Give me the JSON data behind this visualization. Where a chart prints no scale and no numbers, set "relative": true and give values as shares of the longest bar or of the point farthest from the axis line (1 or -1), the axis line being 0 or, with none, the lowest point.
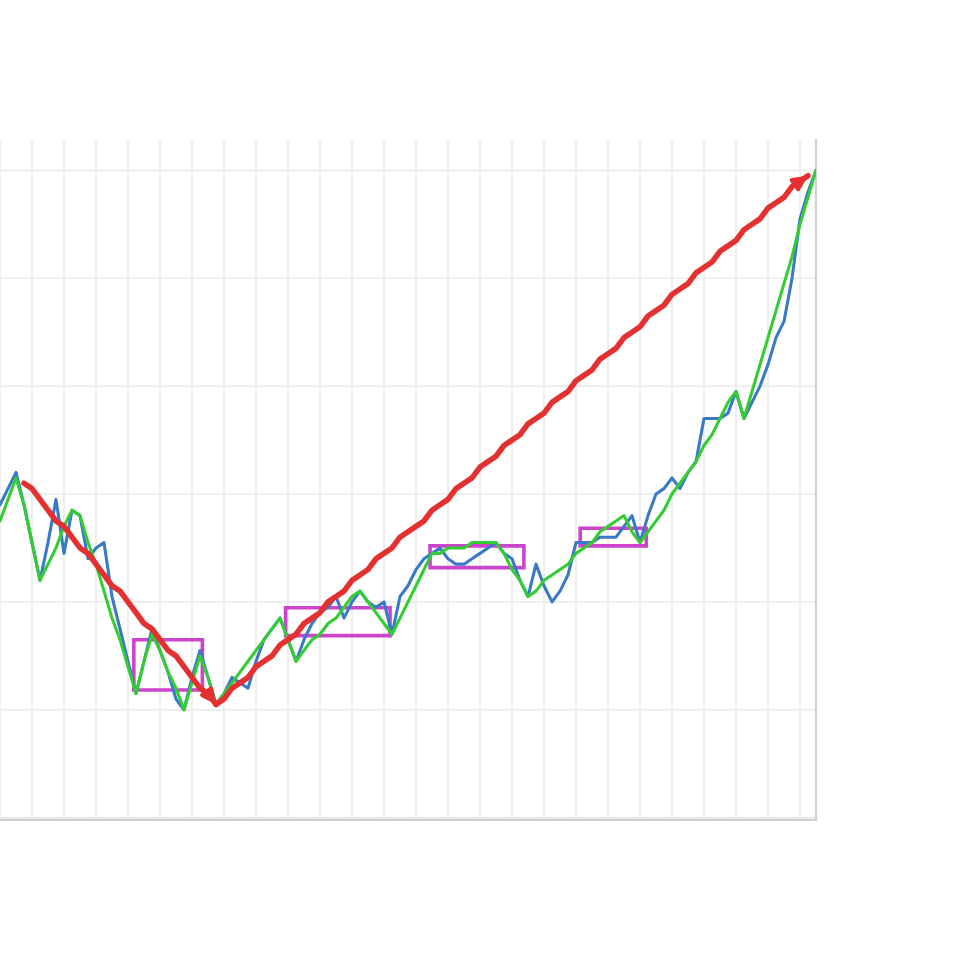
{
  "chart_data": {
    "type": "line",
    "relative": true,
    "grid": true,
    "categories": [
      null,
      null,
      null,
      null,
      null,
      null,
      null,
      null,
      null,
      null,
      null,
      null,
      null,
      null,
      null,
      null,
      null,
      null,
      null,
      null,
      null,
      null,
      null,
      null,
      null,
      null,
      null,
      null,
      null,
      null,
      null,
      null,
      null,
      null,
      null,
      null,
      null,
      null,
      null,
      null,
      null,
      null,
      null,
      null,
      null,
      null,
      null,
      null,
      null,
      null,
      null,
      null,
      null,
      null,
      null,
      null,
      null,
      null,
      null,
      null,
      null,
      null,
      null,
      null,
      null,
      null,
      null,
      null,
      null,
      null,
      null,
      null,
      null,
      null,
      null,
      null,
      null,
      null,
      null,
      null,
      null,
      null,
      null,
      null,
      null,
      null,
      null,
      null,
      null,
      null,
      null,
      null,
      null,
      null,
      null,
      null,
      null,
      null,
      null,
      null,
      null,
      null,
      null
    ],
    "series": [
      {
        "color": "#3a78c8",
        "values": [
          0.38,
          0.41,
          0.44,
          0.38,
          0.31,
          0.24,
          0.31,
          0.39,
          0.29,
          0.37,
          0.36,
          0.28,
          0.3,
          0.31,
          0.21,
          0.15,
          0.09,
          0.03,
          0.09,
          0.15,
          0.11,
          0.07,
          0.02,
          0,
          0.06,
          0.11,
          0.06,
          0.01,
          0.03,
          0.06,
          0.05,
          0.04,
          0.09,
          0.13,
          0.15,
          0.17,
          0.13,
          0.09,
          0.13,
          0.16,
          0.18,
          0.19,
          0.21,
          0.17,
          0.2,
          0.22,
          0.2,
          0.19,
          0.2,
          0.14,
          0.21,
          0.23,
          0.26,
          0.28,
          0.29,
          0.3,
          0.28,
          0.27,
          0.27,
          0.28,
          0.29,
          0.3,
          0.31,
          0.29,
          0.28,
          0.24,
          0.21,
          0.27,
          0.23,
          0.2,
          0.22,
          0.25,
          0.31,
          0.31,
          0.31,
          0.32,
          0.32,
          0.32,
          0.34,
          0.36,
          0.31,
          0.36,
          0.4,
          0.41,
          0.43,
          0.41,
          0.44,
          0.46,
          0.54,
          0.54,
          0.54,
          0.55,
          0.59,
          0.54,
          0.57,
          0.6,
          0.64,
          0.69,
          0.72,
          0.8,
          0.91,
          0.96,
          1
        ]
      },
      {
        "color": "#33cc33",
        "values": [
          0.35,
          0.39,
          0.43,
          0.38,
          0.31,
          0.24,
          0.27,
          0.3,
          0.34,
          0.37,
          0.36,
          0.31,
          0.27,
          0.22,
          0.17,
          0.13,
          0.08,
          0.03,
          0.09,
          0.14,
          0.11,
          0.07,
          0.04,
          0,
          0.05,
          0.1,
          0.06,
          0.01,
          0.03,
          0.05,
          0.07,
          0.09,
          0.11,
          0.13,
          0.15,
          0.17,
          0.13,
          0.09,
          0.11,
          0.13,
          0.14,
          0.16,
          0.17,
          0.19,
          0.21,
          0.22,
          0.2,
          0.18,
          0.16,
          0.14,
          0.17,
          0.2,
          0.23,
          0.26,
          0.29,
          0.29,
          0.3,
          0.3,
          0.3,
          0.31,
          0.31,
          0.31,
          0.31,
          0.29,
          0.26,
          0.24,
          0.21,
          0.22,
          0.24,
          0.25,
          0.26,
          0.27,
          0.29,
          0.3,
          0.31,
          0.33,
          0.34,
          0.35,
          0.36,
          0.33,
          0.31,
          0.33,
          0.35,
          0.37,
          0.4,
          0.42,
          0.44,
          0.46,
          0.49,
          0.51,
          0.54,
          0.57,
          0.59,
          0.54,
          0.59,
          0.64,
          0.69,
          0.74,
          0.79,
          0.84,
          0.9,
          0.95,
          1
        ]
      },
      {
        "color": "#e53030",
        "values": [
          null,
          null,
          null,
          0.42,
          0.41,
          0.39,
          0.37,
          0.35,
          0.34,
          0.32,
          0.3,
          0.29,
          0.27,
          0.25,
          0.23,
          0.22,
          0.2,
          0.18,
          0.16,
          0.15,
          0.13,
          0.11,
          0.1,
          0.08,
          0.06,
          0.04,
          0.03,
          0.01,
          null,
          null,
          null,
          null,
          null,
          null,
          null,
          null,
          null,
          null,
          null,
          null,
          null,
          null,
          null,
          null,
          null,
          null,
          null,
          null,
          null,
          null,
          null,
          null,
          null,
          null,
          null,
          null,
          null,
          null,
          null,
          null,
          null,
          null,
          null,
          null,
          null,
          null,
          null,
          null,
          null,
          null,
          null,
          null,
          null,
          null,
          null,
          null,
          null,
          null,
          null,
          null,
          null,
          null,
          null,
          null,
          null,
          null,
          null,
          null,
          null,
          null,
          null,
          null,
          null,
          null,
          null,
          null,
          null,
          null,
          null,
          null,
          null,
          null,
          null
        ]
      },
      {
        "color": "#e53030",
        "values": [
          null,
          null,
          null,
          null,
          null,
          null,
          null,
          null,
          null,
          null,
          null,
          null,
          null,
          null,
          null,
          null,
          null,
          null,
          null,
          null,
          null,
          null,
          null,
          null,
          null,
          null,
          null,
          0.01,
          0.02,
          0.04,
          0.05,
          0.06,
          0.08,
          0.09,
          0.1,
          0.12,
          0.13,
          0.14,
          0.16,
          0.17,
          0.18,
          0.2,
          0.21,
          0.22,
          0.24,
          0.25,
          0.26,
          0.28,
          0.29,
          0.3,
          0.32,
          0.33,
          0.34,
          0.35,
          0.37,
          0.38,
          0.39,
          0.41,
          0.42,
          0.43,
          0.45,
          0.46,
          0.47,
          0.49,
          0.5,
          0.51,
          0.53,
          0.54,
          0.55,
          0.57,
          0.58,
          0.59,
          0.61,
          0.62,
          0.63,
          0.65,
          0.66,
          0.67,
          0.69,
          0.7,
          0.71,
          0.73,
          0.74,
          0.75,
          0.77,
          0.78,
          0.79,
          0.81,
          0.82,
          0.83,
          0.85,
          0.86,
          0.87,
          0.89,
          0.9,
          0.91,
          0.93,
          0.94,
          0.95,
          0.97,
          0.98,
          0.99,
          null
        ]
      }
    ]
  }
}
